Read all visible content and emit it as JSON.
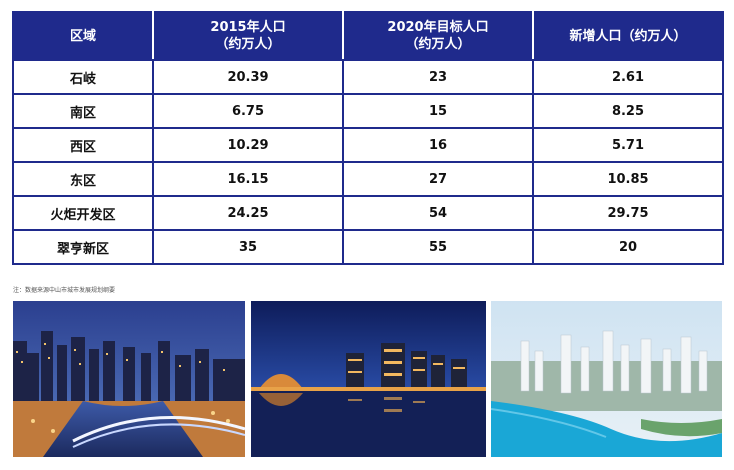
{
  "table": {
    "headers": [
      {
        "line1": "区域",
        "line2": ""
      },
      {
        "line1": "2015年人口",
        "line2": "（约万人）"
      },
      {
        "line1": "2020年目标人口",
        "line2": "（约万人）"
      },
      {
        "line1": "新增人口（约万人）",
        "line2": ""
      }
    ],
    "rows": [
      [
        "石岐",
        "20.39",
        "23",
        "2.61"
      ],
      [
        "南区",
        "6.75",
        "15",
        "8.25"
      ],
      [
        "西区",
        "10.29",
        "16",
        "5.71"
      ],
      [
        "东区",
        "16.15",
        "27",
        "10.85"
      ],
      [
        "火炬开发区",
        "24.25",
        "54",
        "29.75"
      ],
      [
        "翠亨新区",
        "35",
        "55",
        "20"
      ]
    ]
  },
  "note": "注：数据来源中山市城市发展规划纲要",
  "colors": {
    "header_bg": "#1f2a8c",
    "border": "#1f2a8c"
  }
}
